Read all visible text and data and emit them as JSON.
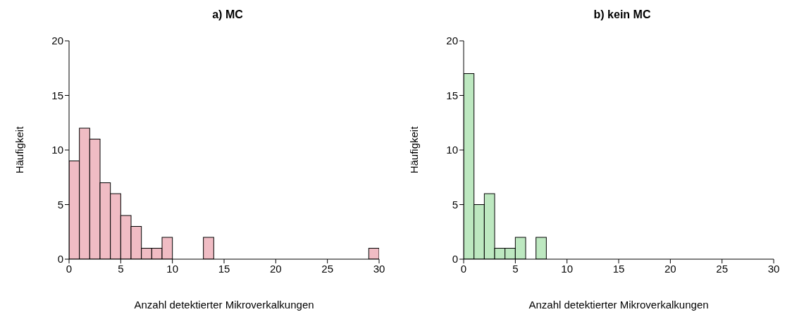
{
  "chart_data": [
    {
      "type": "histogram",
      "title": "a) MC",
      "xlabel": "Anzahl detektierter Mikroverkalkungen",
      "ylabel": "Häufigkeit",
      "color": "#f0bcc4",
      "bins": [
        0,
        1,
        2,
        3,
        4,
        5,
        6,
        7,
        8,
        9,
        10,
        11,
        12,
        13,
        14,
        15,
        16,
        17,
        18,
        19,
        20,
        21,
        22,
        23,
        24,
        25,
        26,
        27,
        28,
        29,
        30
      ],
      "values": [
        9,
        12,
        11,
        7,
        6,
        4,
        3,
        1,
        1,
        2,
        0,
        0,
        0,
        2,
        0,
        0,
        0,
        0,
        0,
        0,
        0,
        0,
        0,
        0,
        0,
        0,
        0,
        0,
        0,
        1
      ],
      "xlim": [
        0,
        30
      ],
      "xticks": [
        0,
        5,
        10,
        15,
        20,
        25,
        30
      ],
      "ylim": [
        0,
        20
      ],
      "yticks": [
        0,
        5,
        10,
        15,
        20
      ]
    },
    {
      "type": "histogram",
      "title": "b) kein MC",
      "xlabel": "Anzahl detektierter Mikroverkalkungen",
      "ylabel": "Häufigkeit",
      "color": "#bde8c0",
      "bins": [
        0,
        1,
        2,
        3,
        4,
        5,
        6,
        7,
        8,
        9,
        10,
        11,
        12,
        13,
        14,
        15,
        16,
        17,
        18,
        19,
        20,
        21,
        22,
        23,
        24,
        25,
        26,
        27,
        28,
        29,
        30
      ],
      "values": [
        17,
        5,
        6,
        1,
        1,
        2,
        0,
        2,
        0,
        0,
        0,
        0,
        0,
        0,
        0,
        0,
        0,
        0,
        0,
        0,
        0,
        0,
        0,
        0,
        0,
        0,
        0,
        0,
        0,
        0
      ],
      "xlim": [
        0,
        30
      ],
      "xticks": [
        0,
        5,
        10,
        15,
        20,
        25,
        30
      ],
      "ylim": [
        0,
        20
      ],
      "yticks": [
        0,
        5,
        10,
        15,
        20
      ]
    }
  ]
}
